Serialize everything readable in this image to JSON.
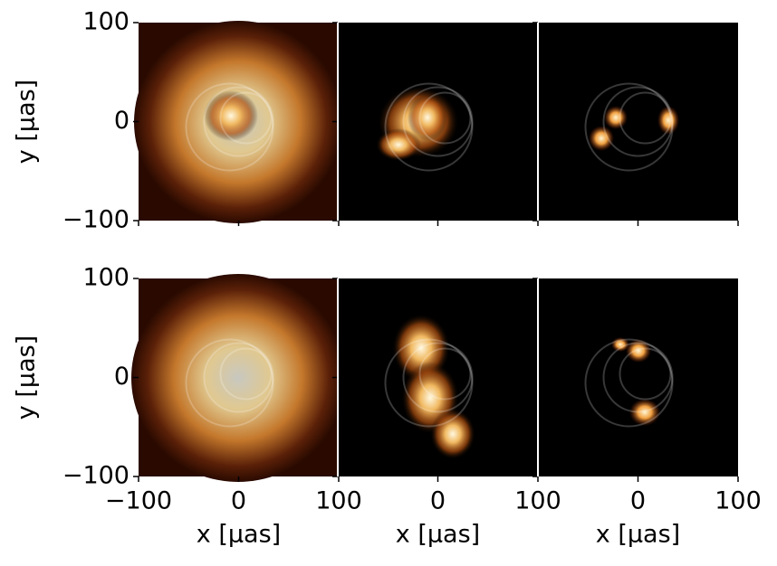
{
  "chart_data": [
    {
      "type": "image",
      "xlim": [
        -100,
        100
      ],
      "ylim": [
        -100,
        100
      ],
      "ylabel": "y [μas]",
      "yticks": [
        {
          "value": -100,
          "label": "−100"
        },
        0,
        100
      ]
    },
    {
      "type": "image",
      "xlim": [
        -100,
        100
      ],
      "ylim": [
        -100,
        100
      ]
    },
    {
      "type": "image",
      "xlim": [
        -100,
        100
      ],
      "ylim": [
        -100,
        100
      ]
    },
    {
      "type": "image",
      "xlim": [
        -100,
        100
      ],
      "ylim": [
        -100,
        100
      ],
      "ylabel": "y [μas]",
      "xlabel": "x [μas]",
      "yticks": [
        {
          "value": -100,
          "label": "−100"
        },
        0,
        100
      ],
      "xticks": [
        {
          "value": -100,
          "label": "−100"
        },
        0,
        100
      ]
    },
    {
      "type": "image",
      "xlim": [
        -100,
        100
      ],
      "ylim": [
        -100,
        100
      ],
      "xlabel": "x [μas]",
      "xticks": [
        0,
        100
      ]
    },
    {
      "type": "image",
      "xlim": [
        -100,
        100
      ],
      "ylim": [
        -100,
        100
      ],
      "xlabel": "x [μas]",
      "xticks": [
        0,
        100
      ]
    }
  ]
}
